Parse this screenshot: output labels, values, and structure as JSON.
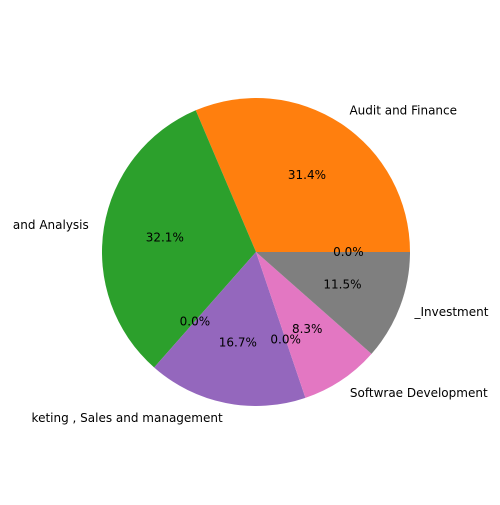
{
  "chart_data": {
    "type": "pie",
    "slices": [
      {
        "label": "Audit and Finance",
        "value": 31.4,
        "pct_text": "31.4%",
        "color": "#ff7f0e"
      },
      {
        "label": "and Analysis",
        "value": 32.1,
        "pct_text": "32.1%",
        "color": "#2ca02c"
      },
      {
        "label": "",
        "value": 0.0,
        "pct_text": "0.0%",
        "color": "#d62728"
      },
      {
        "label": "keting , Sales and management",
        "value": 16.7,
        "pct_text": "16.7%",
        "color": "#9467bd"
      },
      {
        "label": "",
        "value": 0.0,
        "pct_text": "0.0%",
        "color": "#8c564b"
      },
      {
        "label": "Softwrae Development",
        "value": 8.3,
        "pct_text": "8.3%",
        "color": "#e377c2"
      },
      {
        "label": "_Investment",
        "value": 11.5,
        "pct_text": "11.5%",
        "color": "#7f7f7f"
      },
      {
        "label": "",
        "value": 0.0,
        "pct_text": "0.0%",
        "color": "#1f77b4"
      }
    ],
    "start_angle_deg": 0,
    "direction": "counterclockwise"
  }
}
